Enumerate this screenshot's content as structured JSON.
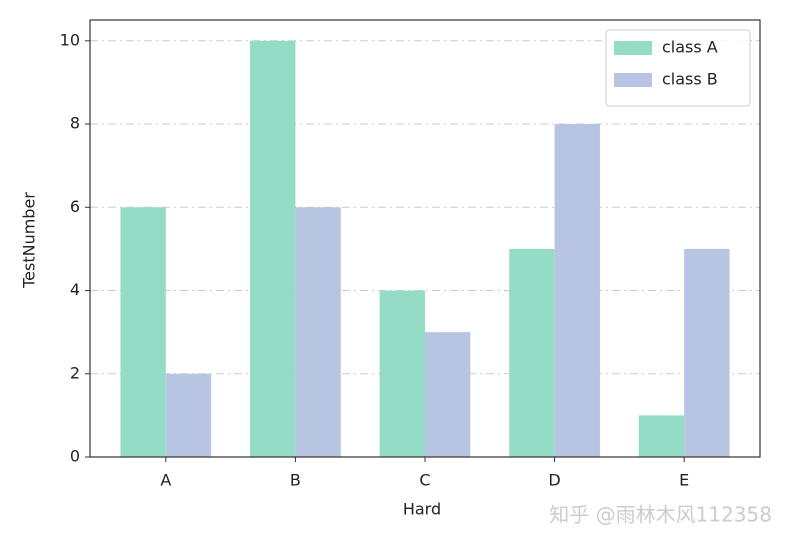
{
  "chart_data": {
    "type": "bar",
    "xlabel": "Hard",
    "ylabel": "TestNumber",
    "categories": [
      "A",
      "B",
      "C",
      "D",
      "E"
    ],
    "series": [
      {
        "name": "class A",
        "color": "#94dcc6",
        "values": [
          6,
          10,
          4,
          5,
          1
        ]
      },
      {
        "name": "class B",
        "color": "#b7c4e2",
        "values": [
          2,
          6,
          3,
          8,
          5
        ]
      }
    ],
    "ylim": [
      0,
      10.5
    ],
    "yticks": [
      0,
      2,
      4,
      6,
      8,
      10
    ],
    "grid": true,
    "legend": "upper right",
    "watermark": "知乎 @雨林木风112358"
  }
}
